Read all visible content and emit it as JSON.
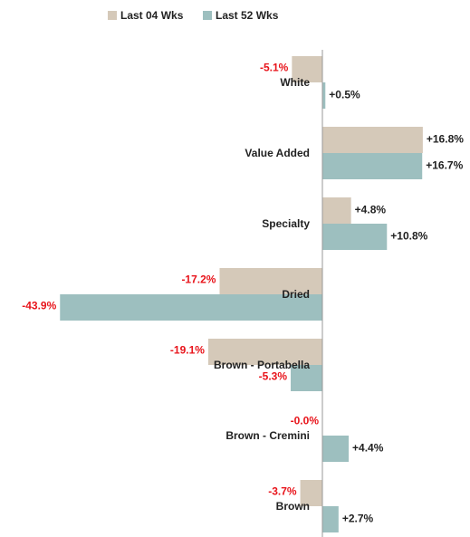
{
  "chart_data": {
    "type": "hbar",
    "categories": [
      "White",
      "Value Added",
      "Specialty",
      "Dried",
      "Brown - Portabella",
      "Brown - Cremini",
      "Brown"
    ],
    "series": [
      {
        "name": "Last 04 Wks",
        "color": "#d5c9b9",
        "values": [
          -5.1,
          16.8,
          4.8,
          -17.2,
          -19.1,
          0,
          -3.7
        ],
        "value_labels": [
          "-5.1%",
          "+16.8%",
          "+4.8%",
          "-17.2%",
          "-19.1%",
          "-0.0%",
          "-3.7%"
        ]
      },
      {
        "name": "Last 52 Wks",
        "color": "#9dbfbf",
        "values": [
          0.5,
          16.7,
          10.8,
          -43.9,
          -5.3,
          4.4,
          2.7
        ],
        "value_labels": [
          "+0.5%",
          "+16.7%",
          "+10.8%",
          "-43.9%",
          "-5.3%",
          "+4.4%",
          "+2.7%"
        ]
      }
    ],
    "xlim": [
      -45,
      20
    ],
    "legend": "top-left"
  }
}
